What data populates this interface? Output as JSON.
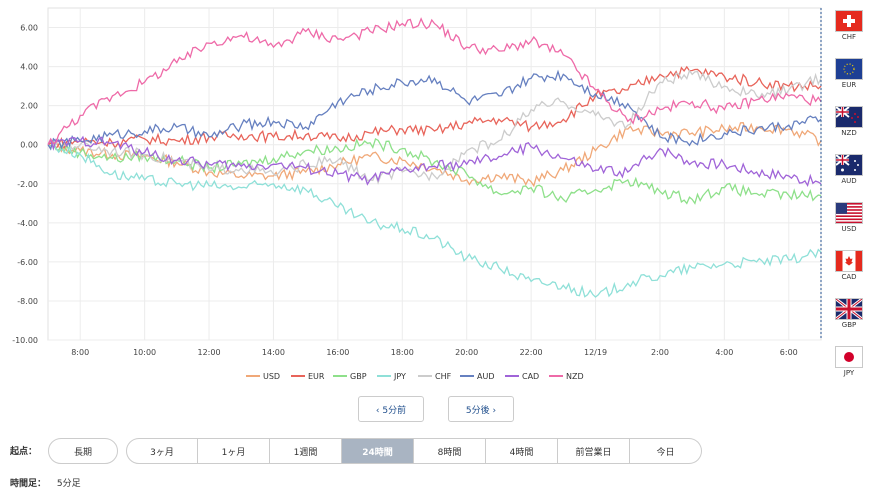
{
  "chart_data": {
    "type": "line",
    "title": "",
    "xlabel": "",
    "ylabel": "",
    "ylim": [
      -10,
      7
    ],
    "yticks": [
      6,
      4,
      2,
      0,
      -2,
      -4,
      -6,
      -8,
      -10
    ],
    "ytick_labels": [
      "6.00",
      "4.00",
      "2.00",
      "0.00",
      "-2.00",
      "-4.00",
      "-6.00",
      "-8.00",
      "-10.00"
    ],
    "xticks": [
      {
        "t": 1.0,
        "label": "8:00"
      },
      {
        "t": 3.0,
        "label": "10:00"
      },
      {
        "t": 5.0,
        "label": "12:00"
      },
      {
        "t": 7.0,
        "label": "14:00"
      },
      {
        "t": 9.0,
        "label": "16:00"
      },
      {
        "t": 11.0,
        "label": "18:00"
      },
      {
        "t": 13.0,
        "label": "20:00"
      },
      {
        "t": 15.0,
        "label": "22:00"
      },
      {
        "t": 17.0,
        "label": "12/19"
      },
      {
        "t": 19.0,
        "label": "2:00"
      },
      {
        "t": 21.0,
        "label": "4:00"
      },
      {
        "t": 23.0,
        "label": "6:00"
      }
    ],
    "x_hours_from_7am": [
      0,
      1,
      2,
      3,
      4,
      5,
      6,
      7,
      8,
      9,
      10,
      11,
      12,
      13,
      14,
      15,
      16,
      17,
      18,
      19,
      20,
      21,
      22,
      23,
      24
    ],
    "grid": true,
    "legend_position": "bottom",
    "series": [
      {
        "name": "USD",
        "color": "#f0a878",
        "values": [
          0,
          -0.3,
          -0.5,
          -0.6,
          -0.9,
          -1.4,
          -1.6,
          -1.6,
          -1.4,
          -1.0,
          -0.6,
          -0.8,
          -1.2,
          -1.8,
          -1.6,
          -1.9,
          -1.3,
          -0.3,
          0.8,
          0.6,
          0.6,
          0.8,
          0.9,
          0.8,
          0.2
        ]
      },
      {
        "name": "EUR",
        "color": "#e8645a",
        "values": [
          0,
          0.2,
          0.1,
          0.3,
          0.2,
          0.4,
          0.5,
          0.4,
          0.5,
          0.3,
          0.6,
          0.8,
          0.7,
          1.1,
          1.3,
          0.9,
          1.3,
          2.5,
          2.8,
          3.6,
          3.8,
          3.5,
          3.2,
          3.0,
          3.0
        ]
      },
      {
        "name": "GBP",
        "color": "#8ee08a",
        "values": [
          0,
          -0.4,
          -0.7,
          -0.6,
          -0.8,
          -1.2,
          -1.0,
          -0.7,
          -0.3,
          -0.2,
          0.1,
          -0.2,
          -0.9,
          -1.5,
          -2.5,
          -2.2,
          -2.8,
          -2.3,
          -1.8,
          -2.4,
          -2.8,
          -2.2,
          -2.5,
          -2.6,
          -2.6
        ]
      },
      {
        "name": "JPY",
        "color": "#8fe0d8",
        "values": [
          0,
          -0.5,
          -1.5,
          -1.8,
          -2.0,
          -2.1,
          -2.2,
          -2.0,
          -2.3,
          -3.2,
          -4.0,
          -4.3,
          -4.8,
          -5.8,
          -6.3,
          -7.0,
          -7.2,
          -7.8,
          -7.1,
          -6.7,
          -6.3,
          -6.1,
          -6.0,
          -5.9,
          -5.5
        ]
      },
      {
        "name": "CHF",
        "color": "#cccccc",
        "values": [
          0,
          0.0,
          -0.3,
          -0.5,
          -0.8,
          -1.3,
          -1.2,
          -1.5,
          -1.0,
          -0.8,
          -1.8,
          -1.4,
          -1.6,
          -0.3,
          0.2,
          1.8,
          2.2,
          1.5,
          1.0,
          3.2,
          3.6,
          3.0,
          2.5,
          2.8,
          3.4
        ]
      },
      {
        "name": "AUD",
        "color": "#6680c0",
        "values": [
          0,
          0.2,
          0.5,
          0.7,
          0.9,
          0.4,
          1.0,
          1.2,
          0.9,
          2.2,
          2.8,
          3.2,
          3.4,
          2.2,
          2.5,
          3.4,
          3.6,
          2.6,
          2.1,
          0.4,
          0.2,
          0.6,
          0.8,
          1.0,
          1.3
        ]
      },
      {
        "name": "CAD",
        "color": "#a064d8",
        "values": [
          0,
          0.2,
          0.1,
          -0.4,
          -0.8,
          -1.0,
          -1.1,
          -1.0,
          -1.2,
          -1.5,
          -1.8,
          -1.3,
          -1.1,
          -1.0,
          -0.6,
          -0.1,
          -0.7,
          -1.3,
          -1.4,
          -0.2,
          -0.9,
          -1.0,
          -1.4,
          -1.6,
          -2.0
        ]
      },
      {
        "name": "NZD",
        "color": "#ee6aa8",
        "values": [
          0,
          1.5,
          2.5,
          3.2,
          4.2,
          5.2,
          5.6,
          5.0,
          5.8,
          5.4,
          5.8,
          6.2,
          6.2,
          5.0,
          4.8,
          5.3,
          4.6,
          2.8,
          1.2,
          1.8,
          2.2,
          1.8,
          2.3,
          2.5,
          2.2
        ]
      }
    ]
  },
  "flags": [
    {
      "code": "CHF",
      "icon": "switzerland-flag-icon"
    },
    {
      "code": "EUR",
      "icon": "eu-flag-icon"
    },
    {
      "code": "NZD",
      "icon": "new-zealand-flag-icon"
    },
    {
      "code": "AUD",
      "icon": "australia-flag-icon"
    },
    {
      "code": "USD",
      "icon": "usa-flag-icon"
    },
    {
      "code": "CAD",
      "icon": "canada-flag-icon"
    },
    {
      "code": "GBP",
      "icon": "uk-flag-icon"
    },
    {
      "code": "JPY",
      "icon": "japan-flag-icon"
    }
  ],
  "nav": {
    "prev_label": "‹ 5分前",
    "next_label": "5分後 ›"
  },
  "start_point": {
    "label": "起点：",
    "long_term": "長期",
    "options": [
      "3ヶ月",
      "1ヶ月",
      "1週間",
      "24時間",
      "8時間",
      "4時間",
      "前営業日",
      "今日"
    ],
    "selected": "24時間"
  },
  "timeframe": {
    "label": "時間足：",
    "value": "5分足"
  },
  "colors": {
    "selected_bg": "#a9b4c2",
    "link_blue": "#1f4e8c",
    "divider_blue": "#1f4e8c"
  }
}
